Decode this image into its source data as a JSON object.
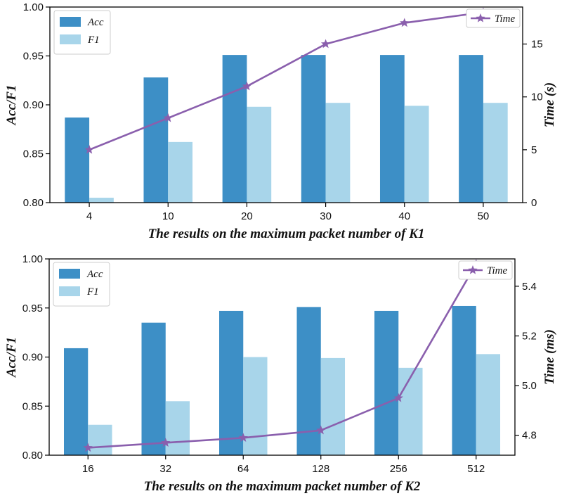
{
  "chart_data": [
    {
      "type": "bar",
      "categories": [
        "4",
        "10",
        "20",
        "30",
        "40",
        "50"
      ],
      "series": [
        {
          "name": "Acc",
          "axis": "left",
          "values": [
            0.887,
            0.928,
            0.951,
            0.951,
            0.951,
            0.951
          ],
          "color": "#3d8fc6"
        },
        {
          "name": "F1",
          "axis": "left",
          "values": [
            0.805,
            0.862,
            0.898,
            0.902,
            0.899,
            0.902
          ],
          "color": "#a8d5ea"
        },
        {
          "name": "Time",
          "axis": "right",
          "type": "line",
          "marker": "star",
          "values": [
            5,
            8,
            11,
            15,
            17,
            18
          ],
          "color": "#8a5fad"
        }
      ],
      "xlabel": "The results on the maximum packet number of K1",
      "ylabel": "Acc/F1",
      "y2label": "Time (s)",
      "ylim": [
        0.8,
        1.0
      ],
      "yticks": [
        "0.80",
        "0.85",
        "0.90",
        "0.95",
        "1.00"
      ],
      "y2lim": [
        0,
        18.5
      ],
      "y2ticks": [
        "0",
        "5",
        "10",
        "15"
      ],
      "y2tick_values": [
        0,
        5,
        10,
        15
      ],
      "grid": false,
      "legend_bars": "top-left",
      "legend_line": "top-right"
    },
    {
      "type": "bar",
      "categories": [
        "16",
        "32",
        "64",
        "128",
        "256",
        "512"
      ],
      "series": [
        {
          "name": "Acc",
          "axis": "left",
          "values": [
            0.909,
            0.935,
            0.947,
            0.951,
            0.947,
            0.952
          ],
          "color": "#3d8fc6"
        },
        {
          "name": "F1",
          "axis": "left",
          "values": [
            0.831,
            0.855,
            0.9,
            0.899,
            0.889,
            0.903
          ],
          "color": "#a8d5ea"
        },
        {
          "name": "Time",
          "axis": "right",
          "type": "line",
          "marker": "star",
          "values": [
            4.75,
            4.77,
            4.79,
            4.82,
            4.95,
            5.49
          ],
          "color": "#8a5fad"
        }
      ],
      "xlabel": "The results on the maximum packet number of K2",
      "ylabel": "Acc/F1",
      "y2label": "Time (ms)",
      "ylim": [
        0.8,
        1.0
      ],
      "yticks": [
        "0.80",
        "0.85",
        "0.90",
        "0.95",
        "1.00"
      ],
      "y2lim": [
        4.72,
        5.51
      ],
      "y2ticks": [
        "4.8",
        "5.0",
        "5.2",
        "5.4"
      ],
      "y2tick_values": [
        4.8,
        5.0,
        5.2,
        5.4
      ],
      "grid": false,
      "legend_bars": "top-left",
      "legend_line": "top-right"
    }
  ]
}
